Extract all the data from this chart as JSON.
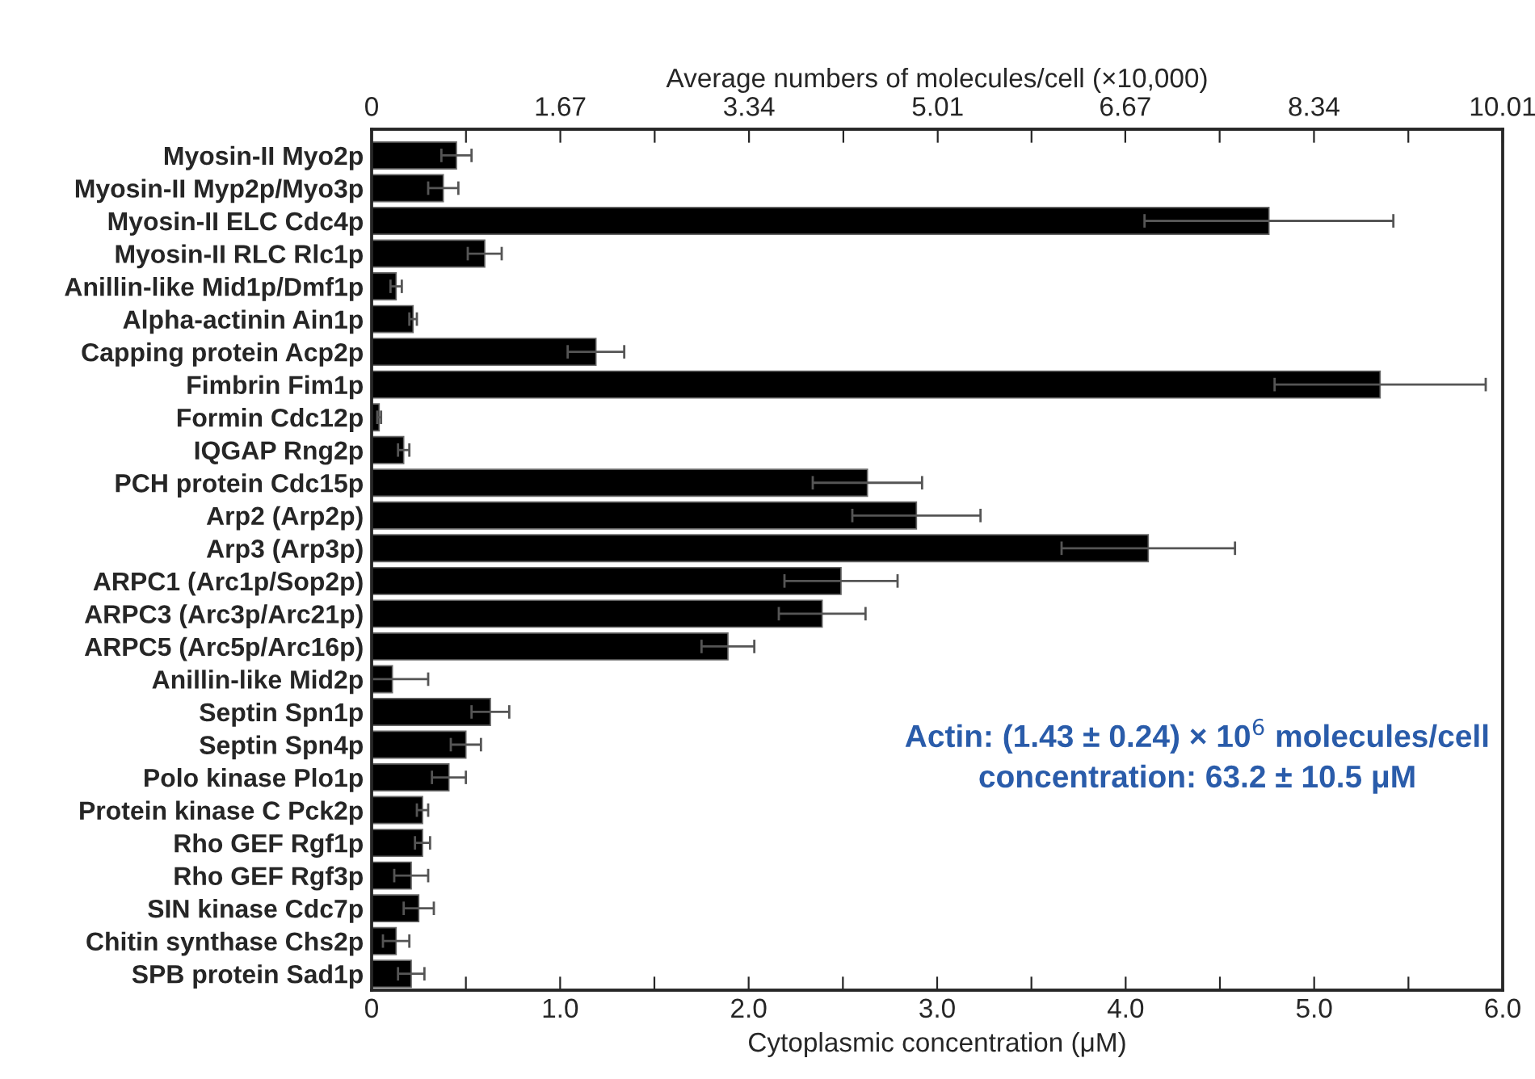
{
  "chart_data": {
    "type": "bar",
    "orientation": "horizontal",
    "categories": [
      "Myosin-II Myo2p",
      "Myosin-II Myp2p/Myo3p",
      "Myosin-II ELC Cdc4p",
      "Myosin-II RLC Rlc1p",
      "Anillin-like Mid1p/Dmf1p",
      "Alpha-actinin Ain1p",
      "Capping protein Acp2p",
      "Fimbrin Fim1p",
      "Formin Cdc12p",
      "IQGAP Rng2p",
      "PCH protein Cdc15p",
      "Arp2 (Arp2p)",
      "Arp3 (Arp3p)",
      "ARPC1 (Arc1p/Sop2p)",
      "ARPC3 (Arc3p/Arc21p)",
      "ARPC5 (Arc5p/Arc16p)",
      "Anillin-like Mid2p",
      "Septin Spn1p",
      "Septin Spn4p",
      "Polo kinase Plo1p",
      "Protein kinase C Pck2p",
      "Rho GEF Rgf1p",
      "Rho GEF Rgf3p",
      "SIN kinase Cdc7p",
      "Chitin synthase Chs2p",
      "SPB protein Sad1p"
    ],
    "values": [
      0.45,
      0.38,
      4.76,
      0.6,
      0.13,
      0.22,
      1.19,
      5.35,
      0.04,
      0.17,
      2.63,
      2.89,
      4.12,
      2.49,
      2.39,
      1.89,
      0.11,
      0.63,
      0.5,
      0.41,
      0.27,
      0.27,
      0.21,
      0.25,
      0.13,
      0.21
    ],
    "errors": [
      0.08,
      0.08,
      0.66,
      0.09,
      0.03,
      0.02,
      0.15,
      0.56,
      0.01,
      0.03,
      0.29,
      0.34,
      0.46,
      0.3,
      0.23,
      0.14,
      0.19,
      0.1,
      0.08,
      0.09,
      0.03,
      0.04,
      0.09,
      0.08,
      0.07,
      0.07
    ],
    "color": "#000000",
    "xlabel": "Cytoplasmic concentration (μM)",
    "xlim": [
      0,
      6.0
    ],
    "xticks": [
      {
        "value": 0,
        "label": "0"
      },
      {
        "value": 0.5,
        "label": null
      },
      {
        "value": 1.0,
        "label": "1.0"
      },
      {
        "value": 1.5,
        "label": null
      },
      {
        "value": 2.0,
        "label": "2.0"
      },
      {
        "value": 2.5,
        "label": null
      },
      {
        "value": 3.0,
        "label": "3.0"
      },
      {
        "value": 3.5,
        "label": null
      },
      {
        "value": 4.0,
        "label": "4.0"
      },
      {
        "value": 4.5,
        "label": null
      },
      {
        "value": 5.0,
        "label": "5.0"
      },
      {
        "value": 5.5,
        "label": null
      },
      {
        "value": 6.0,
        "label": "6.0"
      }
    ],
    "x2label": "Average numbers of molecules/cell (×10,000)",
    "x2lim": [
      0,
      10.01
    ],
    "x2ticks": [
      0,
      {
        "value": 0.835,
        "label": null
      },
      1.67,
      {
        "value": 2.505,
        "label": null
      },
      3.34,
      {
        "value": 4.175,
        "label": null
      },
      5.01,
      {
        "value": 5.84,
        "label": null
      },
      6.67,
      {
        "value": 7.505,
        "label": null
      },
      8.34,
      {
        "value": 9.175,
        "label": null
      },
      10.01
    ],
    "annotations": [
      "Actin: (1.43 ± 0.24) × 10$^{6}$ molecules/cell",
      "concentration: 63.2 ± 10.5 μM"
    ],
    "grid": false,
    "legend": false
  }
}
